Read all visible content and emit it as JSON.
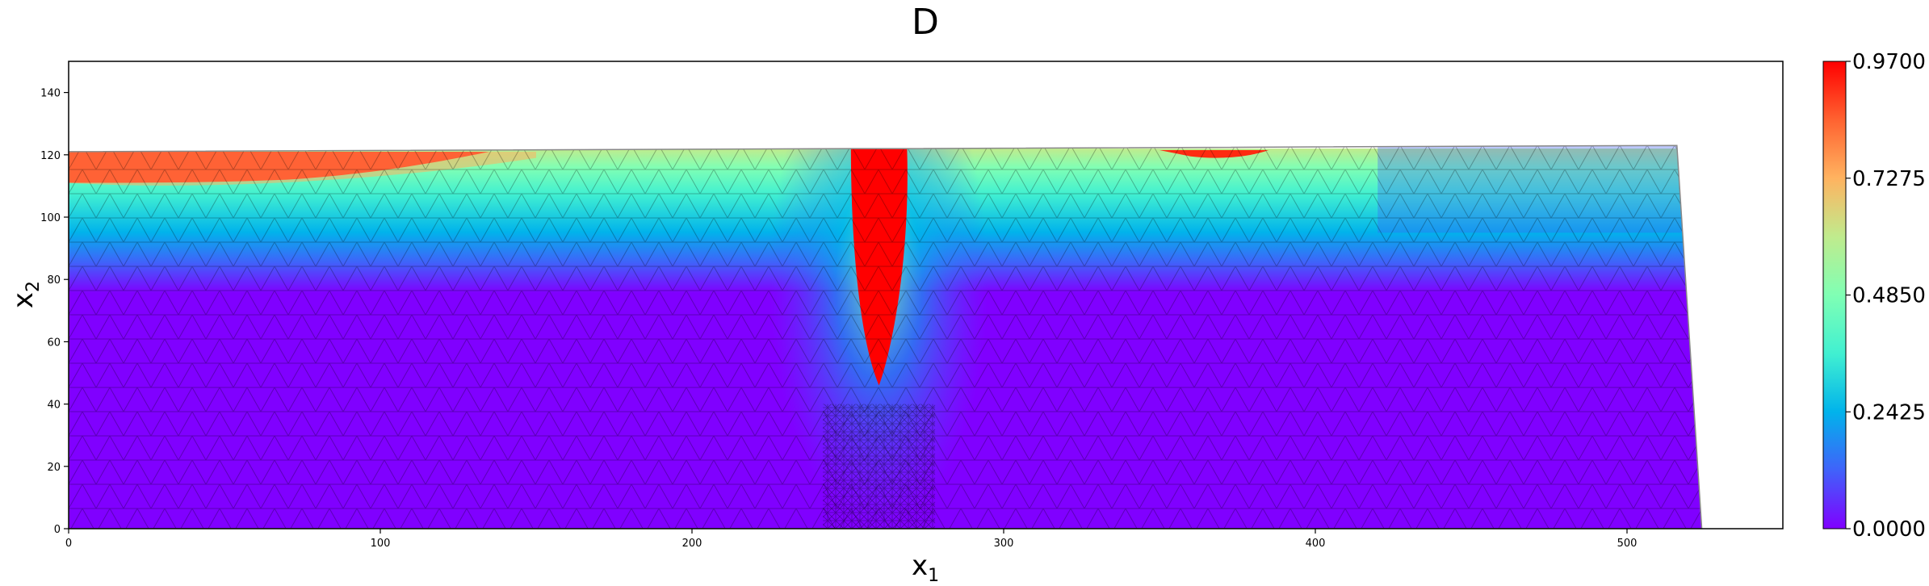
{
  "chart_data": {
    "type": "heatmap",
    "title": "D",
    "xlabel": "x",
    "xlabel_sub": "1",
    "ylabel": "x",
    "ylabel_sub": "2",
    "xlim": [
      0,
      550
    ],
    "ylim": [
      0,
      150
    ],
    "xticks": [
      0,
      100,
      200,
      300,
      400,
      500
    ],
    "yticks": [
      0,
      20,
      40,
      60,
      80,
      100,
      120,
      140
    ],
    "colorbar": {
      "min": 0.0,
      "max": 0.97,
      "ticks": [
        "0.0000",
        "0.2425",
        "0.4850",
        "0.7275",
        "0.9700"
      ],
      "colormap": "rainbow",
      "colors": [
        "#8000ff",
        "#4062fa",
        "#01b3eb",
        "#41f0d1",
        "#80ffb4",
        "#c0eb8d",
        "#ffb360",
        "#ff6230",
        "#ff0000"
      ]
    },
    "domain_outline": [
      [
        0,
        0
      ],
      [
        524,
        0
      ],
      [
        516,
        123
      ],
      [
        268,
        122
      ],
      [
        258,
        122
      ],
      [
        250,
        122
      ],
      [
        0,
        121
      ]
    ],
    "field": {
      "background_level": 0.0,
      "top_band": "damage near top surface 0.5-0.97 decaying to 0 by x2 ~ 85",
      "left_red_zone": {
        "x": [
          0,
          135
        ],
        "y_top": 121,
        "y_bottom_at_x0": 111,
        "level": 0.97
      },
      "notch_red_zone": {
        "x_center": 260,
        "half_width": 9,
        "y_bottom": 46,
        "y_top": 122,
        "level": 0.97
      },
      "right_low_zone": {
        "x": [
          420,
          524
        ],
        "level": 0.15
      }
    }
  }
}
